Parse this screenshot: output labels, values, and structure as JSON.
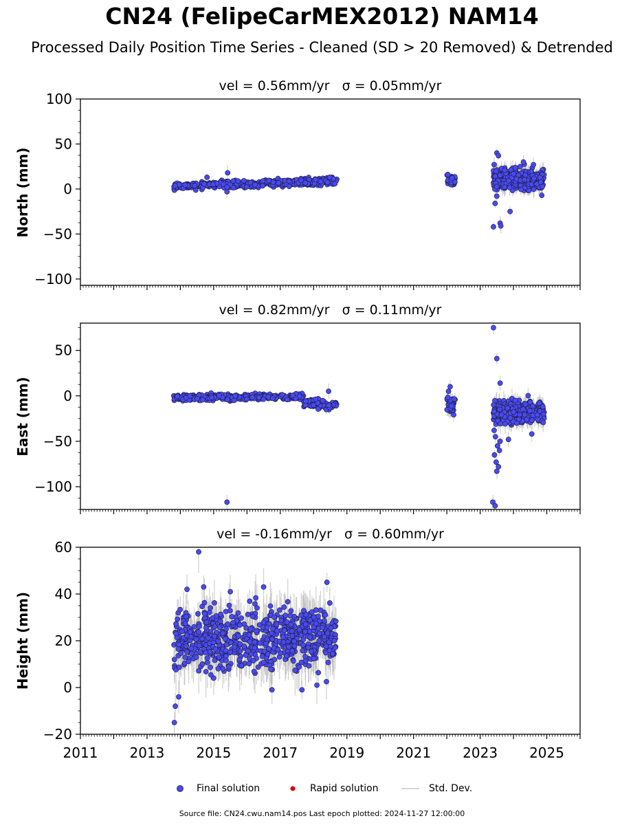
{
  "title": "CN24 (FelipeCarMEX2012) NAM14",
  "subtitle": "Processed Daily Position Time Series - Cleaned (SD > 20 Removed) & Detrended",
  "colors": {
    "final": "#4a4aee",
    "rapid": "#dd0000",
    "stddev": "#bbbbbb",
    "edge": "#1a1a3a"
  },
  "legend": {
    "final": "Final solution",
    "rapid": "Rapid solution",
    "stddev": "Std. Dev."
  },
  "source_note": "Source file: CN24.cwu.nam14.pos  Last epoch plotted: 2024-11-27 12:00:00",
  "chart_data": [
    {
      "type": "scatter",
      "title": "vel = 0.56mm/yr   σ = 0.05mm/yr",
      "ylabel": "North (mm)",
      "xlim": [
        2011,
        2026
      ],
      "ylim": [
        -107,
        100
      ],
      "yticks": [
        100,
        50,
        0,
        -50,
        -100
      ],
      "ytick_labels": [
        "100",
        "50",
        "0",
        "−50",
        "−100"
      ],
      "series": [
        {
          "segments": [
            {
              "x": [
                2013.8,
                2018.7
              ],
              "mean": [
                3,
                9
              ],
              "spread": 2.5,
              "count": 420
            },
            {
              "x": [
                2022.0,
                2022.25
              ],
              "mean": [
                9,
                9
              ],
              "spread": 4,
              "count": 40
            },
            {
              "x": [
                2023.4,
                2024.92
              ],
              "mean": [
                11,
                11
              ],
              "spread": 7,
              "count": 330
            }
          ],
          "outliers": [
            {
              "x": 2015.42,
              "y": 18
            },
            {
              "x": 2015.4,
              "y": -3
            },
            {
              "x": 2014.8,
              "y": 13
            },
            {
              "x": 2023.5,
              "y": 40
            },
            {
              "x": 2023.55,
              "y": 37
            },
            {
              "x": 2023.42,
              "y": 27
            },
            {
              "x": 2023.4,
              "y": -42
            },
            {
              "x": 2023.6,
              "y": -38
            },
            {
              "x": 2023.62,
              "y": -41
            },
            {
              "x": 2023.9,
              "y": -25
            },
            {
              "x": 2023.45,
              "y": -16
            },
            {
              "x": 2023.5,
              "y": -8
            },
            {
              "x": 2024.85,
              "y": -7
            },
            {
              "x": 2024.3,
              "y": 30
            },
            {
              "x": 2024.6,
              "y": 27
            }
          ]
        }
      ]
    },
    {
      "type": "scatter",
      "title": "vel = 0.82mm/yr   σ = 0.11mm/yr",
      "ylabel": "East (mm)",
      "xlim": [
        2011,
        2026
      ],
      "ylim": [
        -125,
        80
      ],
      "yticks": [
        50,
        0,
        -50,
        -100
      ],
      "ytick_labels": [
        "50",
        "0",
        "−50",
        "−100"
      ],
      "series": [
        {
          "segments": [
            {
              "x": [
                2013.8,
                2017.7
              ],
              "mean": [
                -2,
                -1
              ],
              "spread": 2,
              "count": 330
            },
            {
              "x": [
                2017.7,
                2018.7
              ],
              "mean": [
                -8,
                -10
              ],
              "spread": 3,
              "count": 90
            },
            {
              "x": [
                2022.0,
                2022.25
              ],
              "mean": [
                -12,
                -12
              ],
              "spread": 7,
              "count": 40
            },
            {
              "x": [
                2023.4,
                2024.92
              ],
              "mean": [
                -18,
                -18
              ],
              "spread": 8,
              "count": 330
            }
          ],
          "outliers": [
            {
              "x": 2015.4,
              "y": -117
            },
            {
              "x": 2018.45,
              "y": 5
            },
            {
              "x": 2023.4,
              "y": 75
            },
            {
              "x": 2023.5,
              "y": 41
            },
            {
              "x": 2023.38,
              "y": -117
            },
            {
              "x": 2023.45,
              "y": -121
            },
            {
              "x": 2023.5,
              "y": -83
            },
            {
              "x": 2023.55,
              "y": -78
            },
            {
              "x": 2023.48,
              "y": -73
            },
            {
              "x": 2023.43,
              "y": -65
            },
            {
              "x": 2023.52,
              "y": -55
            },
            {
              "x": 2023.46,
              "y": -45
            },
            {
              "x": 2023.58,
              "y": -60
            },
            {
              "x": 2023.6,
              "y": -50
            },
            {
              "x": 2023.42,
              "y": -38
            },
            {
              "x": 2022.05,
              "y": 5
            },
            {
              "x": 2022.1,
              "y": 10
            },
            {
              "x": 2023.6,
              "y": 14
            },
            {
              "x": 2023.85,
              "y": -48
            },
            {
              "x": 2024.55,
              "y": -42
            }
          ]
        }
      ]
    },
    {
      "type": "scatter",
      "title": "vel = -0.16mm/yr   σ = 0.60mm/yr",
      "ylabel": "Height (mm)",
      "xlim": [
        2011,
        2026
      ],
      "ylim": [
        -20,
        60
      ],
      "yticks": [
        60,
        40,
        20,
        0,
        -20
      ],
      "ytick_labels": [
        "60",
        "40",
        "20",
        "0",
        "−20"
      ],
      "xticks": [
        2011,
        2013,
        2015,
        2017,
        2019,
        2021,
        2023,
        2025
      ],
      "xtick_labels": [
        "2011",
        "2013",
        "2015",
        "2017",
        "2019",
        "2021",
        "2023",
        "2025"
      ],
      "series": [
        {
          "segments": [
            {
              "x": [
                2013.8,
                2018.7
              ],
              "mean": [
                20,
                22
              ],
              "spread": 8,
              "count": 700
            }
          ],
          "outliers": [
            {
              "x": 2014.55,
              "y": 58
            },
            {
              "x": 2013.82,
              "y": -15
            },
            {
              "x": 2013.85,
              "y": -8
            },
            {
              "x": 2014.2,
              "y": 42
            },
            {
              "x": 2014.7,
              "y": 43
            },
            {
              "x": 2015.5,
              "y": 41
            },
            {
              "x": 2016.5,
              "y": 43
            },
            {
              "x": 2018.4,
              "y": 45
            },
            {
              "x": 2013.95,
              "y": -4
            },
            {
              "x": 2016.75,
              "y": -1
            },
            {
              "x": 2017.65,
              "y": -1
            },
            {
              "x": 2018.1,
              "y": 1
            },
            {
              "x": 2015.0,
              "y": 4
            }
          ]
        }
      ]
    }
  ]
}
